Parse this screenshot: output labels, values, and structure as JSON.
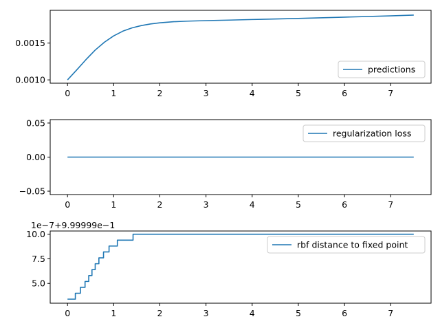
{
  "chart_data": [
    {
      "type": "line",
      "xlim": [
        -0.375,
        7.875
      ],
      "ylim": [
        0.000955,
        0.001945
      ],
      "x_ticks": [
        0,
        1,
        2,
        3,
        4,
        5,
        6,
        7
      ],
      "x_tick_labels": [
        "0",
        "1",
        "2",
        "3",
        "4",
        "5",
        "6",
        "7"
      ],
      "y_ticks": [
        0.001,
        0.0015
      ],
      "y_tick_labels": [
        "0.0010",
        "0.0015"
      ],
      "legend": {
        "location": "lower-right",
        "entries": [
          "predictions"
        ]
      },
      "grid": false,
      "series": [
        {
          "name": "predictions",
          "color": "#1f77b4",
          "x": [
            0,
            0.2,
            0.4,
            0.6,
            0.8,
            1.0,
            1.2,
            1.4,
            1.6,
            1.8,
            2.0,
            2.3,
            2.6,
            3.0,
            3.5,
            4.0,
            5.0,
            6.0,
            7.0,
            7.5
          ],
          "y": [
            0.001,
            0.001135,
            0.001275,
            0.001405,
            0.001512,
            0.001598,
            0.001662,
            0.001707,
            0.001738,
            0.00176,
            0.001775,
            0.00179,
            0.001798,
            0.001805,
            0.001812,
            0.00182,
            0.001835,
            0.001852,
            0.00187,
            0.00188
          ]
        }
      ]
    },
    {
      "type": "line",
      "xlim": [
        -0.375,
        7.875
      ],
      "ylim": [
        -0.055,
        0.055
      ],
      "x_ticks": [
        0,
        1,
        2,
        3,
        4,
        5,
        6,
        7
      ],
      "x_tick_labels": [
        "0",
        "1",
        "2",
        "3",
        "4",
        "5",
        "6",
        "7"
      ],
      "y_ticks": [
        -0.05,
        0.0,
        0.05
      ],
      "y_tick_labels": [
        "−0.05",
        "0.00",
        "0.05"
      ],
      "legend": {
        "location": "upper-right",
        "entries": [
          "regularization loss"
        ]
      },
      "grid": false,
      "series": [
        {
          "name": "regularization loss",
          "color": "#1f77b4",
          "x": [
            0,
            7.5
          ],
          "y": [
            0.0,
            0.0
          ]
        }
      ]
    },
    {
      "type": "line",
      "step": true,
      "xlim": [
        -0.375,
        7.875
      ],
      "ylim": [
        2.99,
        10.33
      ],
      "y_offset_label": "1e−7+9.99999e−1",
      "x_ticks": [
        0,
        1,
        2,
        3,
        4,
        5,
        6,
        7
      ],
      "x_tick_labels": [
        "0",
        "1",
        "2",
        "3",
        "4",
        "5",
        "6",
        "7"
      ],
      "y_ticks": [
        5.0,
        7.5,
        10.0
      ],
      "y_tick_labels": [
        "5.0",
        "7.5",
        "10.0"
      ],
      "legend": {
        "location": "upper-right",
        "entries": [
          "rbf distance to fixed point"
        ]
      },
      "grid": false,
      "series": [
        {
          "name": "rbf distance to fixed point",
          "color": "#1f77b4",
          "x": [
            0,
            0.17,
            0.28,
            0.38,
            0.46,
            0.53,
            0.6,
            0.68,
            0.78,
            0.9,
            1.08,
            1.42,
            7.5
          ],
          "y": [
            3.4,
            4.0,
            4.6,
            5.2,
            5.8,
            6.4,
            7.0,
            7.6,
            8.2,
            8.8,
            9.4,
            10.0,
            10.0
          ]
        }
      ]
    }
  ]
}
